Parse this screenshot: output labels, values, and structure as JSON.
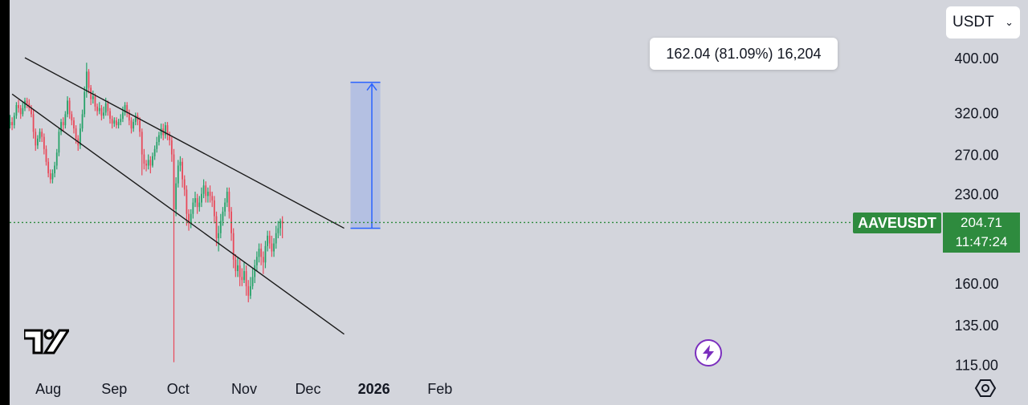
{
  "currency": {
    "selected": "USDT"
  },
  "tooltip": {
    "text": "162.04 (81.09%) 16,204"
  },
  "symbol_tag": "AAVEUSDT",
  "last_price": {
    "price": "204.71",
    "countdown": "11:47:24"
  },
  "chart_data": {
    "type": "candlestick",
    "symbol": "AAVEUSDT",
    "price_scale": "log",
    "y_ticks": [
      "400.00",
      "320.00",
      "270.00",
      "230.00",
      "160.00",
      "135.00",
      "115.00"
    ],
    "y_tick_values": [
      400,
      320,
      270,
      230,
      160,
      135,
      115
    ],
    "x_ticks": [
      "Aug",
      "Sep",
      "Oct",
      "Nov",
      "Dec",
      "2026",
      "Feb"
    ],
    "x_tick_bold": [
      "2026"
    ],
    "ylim": [
      113,
      430
    ],
    "colors": {
      "up": "#26a269",
      "down": "#e8495a",
      "last_price_line": "#2e8b3e",
      "projection": "#2962ff",
      "trendline": "#1a1a1a"
    },
    "candles": [
      [
        266,
        260,
        273,
        257
      ],
      [
        260,
        258,
        266,
        252
      ],
      [
        258,
        270,
        274,
        256
      ],
      [
        270,
        279,
        282,
        266
      ],
      [
        279,
        290,
        294,
        276
      ],
      [
        290,
        302,
        308,
        286
      ],
      [
        302,
        304,
        312,
        298
      ],
      [
        304,
        308,
        317,
        300
      ],
      [
        308,
        304,
        314,
        298
      ],
      [
        304,
        316,
        320,
        300
      ],
      [
        316,
        330,
        334,
        312
      ],
      [
        330,
        326,
        337,
        320
      ],
      [
        326,
        318,
        330,
        312
      ],
      [
        318,
        326,
        334,
        315
      ],
      [
        326,
        336,
        340,
        322
      ],
      [
        336,
        332,
        340,
        326
      ],
      [
        332,
        326,
        338,
        322
      ],
      [
        326,
        318,
        330,
        314
      ],
      [
        318,
        296,
        324,
        288
      ],
      [
        296,
        280,
        300,
        274
      ],
      [
        280,
        288,
        292,
        276
      ],
      [
        288,
        296,
        300,
        284
      ],
      [
        296,
        290,
        300,
        284
      ],
      [
        290,
        276,
        294,
        270
      ],
      [
        276,
        262,
        280,
        258
      ],
      [
        262,
        250,
        266,
        246
      ],
      [
        250,
        244,
        254,
        240
      ],
      [
        244,
        250,
        254,
        240
      ],
      [
        250,
        258,
        262,
        246
      ],
      [
        258,
        272,
        276,
        254
      ],
      [
        272,
        296,
        300,
        268
      ],
      [
        296,
        308,
        312,
        292
      ],
      [
        308,
        304,
        314,
        296
      ],
      [
        304,
        318,
        322,
        300
      ],
      [
        318,
        336,
        342,
        314
      ],
      [
        336,
        318,
        340,
        312
      ],
      [
        318,
        310,
        322,
        304
      ],
      [
        310,
        300,
        314,
        294
      ],
      [
        300,
        288,
        304,
        282
      ],
      [
        288,
        280,
        292,
        274
      ],
      [
        280,
        300,
        306,
        276
      ],
      [
        300,
        318,
        324,
        296
      ],
      [
        318,
        348,
        356,
        314
      ],
      [
        348,
        378,
        392,
        340
      ],
      [
        378,
        354,
        382,
        346
      ],
      [
        354,
        338,
        358,
        330
      ],
      [
        338,
        342,
        350,
        332
      ],
      [
        342,
        328,
        346,
        322
      ],
      [
        328,
        322,
        332,
        316
      ],
      [
        322,
        326,
        334,
        318
      ],
      [
        326,
        316,
        330,
        310
      ],
      [
        316,
        320,
        328,
        312
      ],
      [
        320,
        332,
        340,
        316
      ],
      [
        332,
        322,
        336,
        316
      ],
      [
        322,
        312,
        326,
        306
      ],
      [
        312,
        306,
        316,
        300
      ],
      [
        306,
        310,
        314,
        302
      ],
      [
        310,
        304,
        314,
        300
      ],
      [
        304,
        308,
        312,
        300
      ],
      [
        308,
        312,
        318,
        304
      ],
      [
        312,
        320,
        328,
        308
      ],
      [
        320,
        330,
        334,
        316
      ],
      [
        330,
        320,
        334,
        314
      ],
      [
        320,
        310,
        324,
        304
      ],
      [
        310,
        300,
        314,
        294
      ],
      [
        300,
        308,
        312,
        296
      ],
      [
        308,
        316,
        320,
        304
      ],
      [
        316,
        310,
        320,
        304
      ],
      [
        310,
        296,
        314,
        290
      ],
      [
        296,
        270,
        300,
        248
      ],
      [
        270,
        260,
        276,
        254
      ],
      [
        260,
        258,
        264,
        252
      ],
      [
        258,
        264,
        270,
        254
      ],
      [
        264,
        258,
        268,
        250
      ],
      [
        258,
        268,
        272,
        256
      ],
      [
        268,
        276,
        280,
        264
      ],
      [
        276,
        284,
        290,
        272
      ],
      [
        284,
        292,
        296,
        280
      ],
      [
        292,
        300,
        306,
        288
      ],
      [
        300,
        292,
        306,
        286
      ],
      [
        292,
        304,
        308,
        288
      ],
      [
        304,
        292,
        308,
        286
      ],
      [
        292,
        286,
        296,
        280
      ],
      [
        286,
        270,
        290,
        262
      ],
      [
        270,
        216,
        276,
        116
      ],
      [
        216,
        240,
        246,
        210
      ],
      [
        240,
        258,
        264,
        236
      ],
      [
        258,
        262,
        268,
        252
      ],
      [
        262,
        244,
        266,
        236
      ],
      [
        244,
        234,
        248,
        228
      ],
      [
        234,
        212,
        238,
        202
      ],
      [
        212,
        204,
        216,
        198
      ],
      [
        204,
        212,
        216,
        200
      ],
      [
        212,
        222,
        226,
        208
      ],
      [
        222,
        226,
        232,
        218
      ],
      [
        226,
        218,
        230,
        212
      ],
      [
        218,
        222,
        228,
        214
      ],
      [
        222,
        230,
        236,
        218
      ],
      [
        230,
        238,
        244,
        226
      ],
      [
        238,
        228,
        242,
        222
      ],
      [
        228,
        232,
        236,
        222
      ],
      [
        232,
        228,
        238,
        222
      ],
      [
        228,
        224,
        232,
        218
      ],
      [
        224,
        210,
        228,
        204
      ],
      [
        210,
        192,
        214,
        186
      ],
      [
        192,
        196,
        202,
        182
      ],
      [
        196,
        206,
        212,
        192
      ],
      [
        206,
        214,
        218,
        202
      ],
      [
        214,
        222,
        226,
        210
      ],
      [
        222,
        232,
        236,
        218
      ],
      [
        232,
        214,
        236,
        208
      ],
      [
        214,
        196,
        218,
        190
      ],
      [
        196,
        176,
        200,
        170
      ],
      [
        176,
        168,
        180,
        164
      ],
      [
        168,
        172,
        178,
        164
      ],
      [
        172,
        164,
        176,
        158
      ],
      [
        164,
        162,
        170,
        158
      ],
      [
        162,
        168,
        174,
        160
      ],
      [
        168,
        158,
        172,
        152
      ],
      [
        158,
        152,
        162,
        148
      ],
      [
        152,
        158,
        164,
        150
      ],
      [
        158,
        164,
        170,
        156
      ],
      [
        164,
        172,
        176,
        160
      ],
      [
        172,
        178,
        182,
        168
      ],
      [
        178,
        184,
        188,
        174
      ],
      [
        184,
        178,
        188,
        172
      ],
      [
        178,
        174,
        182,
        166
      ],
      [
        174,
        186,
        190,
        170
      ],
      [
        186,
        194,
        198,
        182
      ],
      [
        194,
        188,
        198,
        184
      ],
      [
        188,
        182,
        194,
        178
      ],
      [
        182,
        188,
        192,
        178
      ],
      [
        188,
        196,
        202,
        184
      ],
      [
        196,
        200,
        206,
        192
      ],
      [
        200,
        206,
        208,
        194
      ],
      [
        206,
        204,
        210,
        192
      ]
    ],
    "trendlines": [
      {
        "name": "channel-upper",
        "from": [
          "2025-07-21",
          400
        ],
        "to": [
          "2025-12-18",
          200
        ]
      },
      {
        "name": "channel-lower",
        "from": [
          "2025-07-15",
          345
        ],
        "to": [
          "2025-12-18",
          130
        ]
      }
    ],
    "projection": {
      "base": 200,
      "target": 362,
      "change": "162.04",
      "change_pct": "81.09%",
      "ticks": "16,204"
    }
  }
}
